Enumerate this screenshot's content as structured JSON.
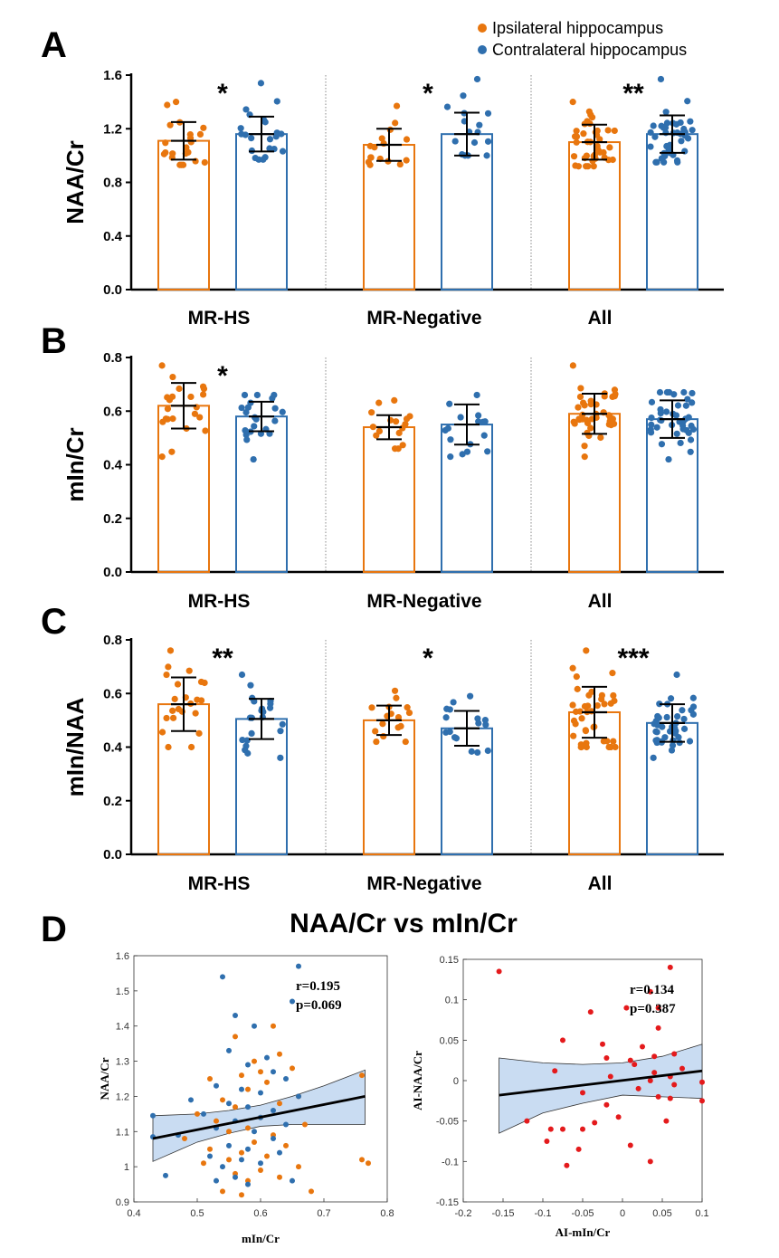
{
  "colors": {
    "ipsi": "#E8760E",
    "contra": "#2F6FAE",
    "scatter_red": "#E41A1C",
    "band": "#C9DCF2",
    "axis": "#000000"
  },
  "legend": {
    "items": [
      "Ipsilateral hippocampus",
      "Contralateral hippocampus"
    ]
  },
  "chart_data": [
    {
      "panel": "A",
      "type": "bar",
      "ylabel": "NAA/Cr",
      "ylim": [
        0,
        1.6
      ],
      "yticks": [
        "0.0",
        "0.4",
        "0.8",
        "1.2",
        "1.6"
      ],
      "tickvals": [
        0,
        0.4,
        0.8,
        1.2,
        1.6
      ],
      "groups": [
        "MR-HS",
        "MR-Negative",
        "All"
      ],
      "significance": [
        "*",
        "*",
        "**"
      ],
      "series": [
        {
          "name": "Ipsilateral hippocampus",
          "means": [
            1.11,
            1.08,
            1.1
          ],
          "sd": [
            0.14,
            0.12,
            0.13
          ],
          "n": [
            22,
            16,
            40
          ],
          "ranges": [
            [
              0.93,
              1.4
            ],
            [
              0.93,
              1.37
            ],
            [
              0.92,
              1.4
            ]
          ]
        },
        {
          "name": "Contralateral hippocampus",
          "means": [
            1.16,
            1.16,
            1.16
          ],
          "sd": [
            0.13,
            0.16,
            0.14
          ],
          "n": [
            22,
            16,
            40
          ],
          "ranges": [
            [
              0.97,
              1.54
            ],
            [
              1.0,
              1.57
            ],
            [
              0.95,
              1.57
            ]
          ]
        }
      ]
    },
    {
      "panel": "B",
      "type": "bar",
      "ylabel": "mIn/Cr",
      "ylim": [
        0,
        0.8
      ],
      "yticks": [
        "0.0",
        "0.2",
        "0.4",
        "0.6",
        "0.8"
      ],
      "tickvals": [
        0,
        0.2,
        0.4,
        0.6,
        0.8
      ],
      "groups": [
        "MR-HS",
        "MR-Negative",
        "All"
      ],
      "significance": [
        "*",
        "",
        ""
      ],
      "series": [
        {
          "name": "Ipsilateral hippocampus",
          "means": [
            0.62,
            0.54,
            0.59
          ],
          "sd": [
            0.085,
            0.045,
            0.075
          ],
          "n": [
            22,
            16,
            40
          ],
          "ranges": [
            [
              0.43,
              0.77
            ],
            [
              0.46,
              0.64
            ],
            [
              0.43,
              0.77
            ]
          ]
        },
        {
          "name": "Contralateral hippocampus",
          "means": [
            0.58,
            0.55,
            0.57
          ],
          "sd": [
            0.055,
            0.075,
            0.07
          ],
          "n": [
            22,
            16,
            40
          ],
          "ranges": [
            [
              0.42,
              0.66
            ],
            [
              0.43,
              0.66
            ],
            [
              0.42,
              0.67
            ]
          ]
        }
      ]
    },
    {
      "panel": "C",
      "type": "bar",
      "ylabel": "mIn/NAA",
      "ylim": [
        0,
        0.8
      ],
      "yticks": [
        "0.0",
        "0.2",
        "0.4",
        "0.6",
        "0.8"
      ],
      "tickvals": [
        0,
        0.2,
        0.4,
        0.6,
        0.8
      ],
      "groups": [
        "MR-HS",
        "MR-Negative",
        "All"
      ],
      "significance": [
        "**",
        "*",
        "***"
      ],
      "series": [
        {
          "name": "Ipsilateral hippocampus",
          "means": [
            0.56,
            0.5,
            0.53
          ],
          "sd": [
            0.1,
            0.055,
            0.095
          ],
          "n": [
            22,
            16,
            40
          ],
          "ranges": [
            [
              0.4,
              0.76
            ],
            [
              0.42,
              0.61
            ],
            [
              0.4,
              0.76
            ]
          ]
        },
        {
          "name": "Contralateral hippocampus",
          "means": [
            0.505,
            0.47,
            0.49
          ],
          "sd": [
            0.075,
            0.065,
            0.07
          ],
          "n": [
            22,
            16,
            40
          ],
          "ranges": [
            [
              0.36,
              0.67
            ],
            [
              0.38,
              0.59
            ],
            [
              0.36,
              0.67
            ]
          ]
        }
      ]
    },
    {
      "panel": "D-left",
      "type": "scatter",
      "xlabel": "mIn/Cr",
      "ylabel": "NAA/Cr",
      "xlim": [
        0.4,
        0.8
      ],
      "ylim": [
        0.9,
        1.6
      ],
      "xticks": [
        "0.4",
        "0.5",
        "0.6",
        "0.7",
        "0.8"
      ],
      "xtickvals": [
        0.4,
        0.5,
        0.6,
        0.7,
        0.8
      ],
      "yticks": [
        "0.9",
        "1",
        "1.1",
        "1.2",
        "1.3",
        "1.4",
        "1.5",
        "1.6"
      ],
      "ytickvals": [
        0.9,
        1.0,
        1.1,
        1.2,
        1.3,
        1.4,
        1.5,
        1.6
      ],
      "annotation": [
        "r=0.195",
        "p=0.069"
      ],
      "fit": {
        "x": [
          0.43,
          0.765
        ],
        "y": [
          1.08,
          1.2
        ]
      },
      "band_upper": [
        [
          0.43,
          1.145
        ],
        [
          0.5,
          1.15
        ],
        [
          0.55,
          1.16
        ],
        [
          0.6,
          1.175
        ],
        [
          0.65,
          1.2
        ],
        [
          0.7,
          1.23
        ],
        [
          0.765,
          1.275
        ]
      ],
      "band_lower": [
        [
          0.43,
          1.015
        ],
        [
          0.5,
          1.07
        ],
        [
          0.55,
          1.095
        ],
        [
          0.6,
          1.115
        ],
        [
          0.65,
          1.12
        ],
        [
          0.7,
          1.12
        ],
        [
          0.765,
          1.12
        ]
      ],
      "series": [
        {
          "name": "Ipsilateral hippocampus",
          "color": "#E8760E",
          "points": [
            [
              0.62,
              1.4
            ],
            [
              0.56,
              1.37
            ],
            [
              0.63,
              1.32
            ],
            [
              0.59,
              1.3
            ],
            [
              0.65,
              1.28
            ],
            [
              0.6,
              1.27
            ],
            [
              0.57,
              1.26
            ],
            [
              0.52,
              1.25
            ],
            [
              0.61,
              1.24
            ],
            [
              0.58,
              1.22
            ],
            [
              0.66,
              1.2
            ],
            [
              0.54,
              1.19
            ],
            [
              0.63,
              1.18
            ],
            [
              0.56,
              1.17
            ],
            [
              0.5,
              1.15
            ],
            [
              0.6,
              1.14
            ],
            [
              0.53,
              1.13
            ],
            [
              0.67,
              1.12
            ],
            [
              0.58,
              1.11
            ],
            [
              0.55,
              1.1
            ],
            [
              0.62,
              1.09
            ],
            [
              0.48,
              1.08
            ],
            [
              0.59,
              1.07
            ],
            [
              0.64,
              1.06
            ],
            [
              0.52,
              1.05
            ],
            [
              0.57,
              1.04
            ],
            [
              0.61,
              1.03
            ],
            [
              0.55,
              1.02
            ],
            [
              0.51,
              1.01
            ],
            [
              0.66,
              1.0
            ],
            [
              0.6,
              0.99
            ],
            [
              0.56,
              0.98
            ],
            [
              0.63,
              0.97
            ],
            [
              0.58,
              0.96
            ],
            [
              0.68,
              0.93
            ],
            [
              0.54,
              0.93
            ],
            [
              0.57,
              0.92
            ],
            [
              0.76,
              1.26
            ],
            [
              0.76,
              1.02
            ],
            [
              0.77,
              1.01
            ]
          ]
        },
        {
          "name": "Contralateral hippocampus",
          "color": "#2F6FAE",
          "points": [
            [
              0.66,
              1.57
            ],
            [
              0.54,
              1.54
            ],
            [
              0.65,
              1.47
            ],
            [
              0.56,
              1.43
            ],
            [
              0.59,
              1.4
            ],
            [
              0.55,
              1.33
            ],
            [
              0.61,
              1.31
            ],
            [
              0.58,
              1.29
            ],
            [
              0.62,
              1.27
            ],
            [
              0.64,
              1.25
            ],
            [
              0.53,
              1.23
            ],
            [
              0.57,
              1.22
            ],
            [
              0.6,
              1.21
            ],
            [
              0.66,
              1.2
            ],
            [
              0.49,
              1.19
            ],
            [
              0.55,
              1.18
            ],
            [
              0.58,
              1.17
            ],
            [
              0.62,
              1.16
            ],
            [
              0.51,
              1.15
            ],
            [
              0.43,
              1.145
            ],
            [
              0.6,
              1.14
            ],
            [
              0.56,
              1.13
            ],
            [
              0.64,
              1.12
            ],
            [
              0.53,
              1.11
            ],
            [
              0.59,
              1.1
            ],
            [
              0.47,
              1.09
            ],
            [
              0.43,
              1.085
            ],
            [
              0.62,
              1.08
            ],
            [
              0.55,
              1.06
            ],
            [
              0.58,
              1.05
            ],
            [
              0.63,
              1.04
            ],
            [
              0.52,
              1.03
            ],
            [
              0.57,
              1.02
            ],
            [
              0.6,
              1.01
            ],
            [
              0.54,
              1.0
            ],
            [
              0.45,
              0.975
            ],
            [
              0.56,
              0.97
            ],
            [
              0.53,
              0.96
            ],
            [
              0.65,
              0.96
            ],
            [
              0.58,
              0.95
            ]
          ]
        }
      ]
    },
    {
      "panel": "D-right",
      "type": "scatter",
      "xlabel": "AI-mIn/Cr",
      "ylabel": "AI-NAA/Cr",
      "xlim": [
        -0.2,
        0.1
      ],
      "ylim": [
        -0.15,
        0.15
      ],
      "xticks": [
        "-0.2",
        "-0.15",
        "-0.1",
        "-0.05",
        "0",
        "0.05",
        "0.1"
      ],
      "xtickvals": [
        -0.2,
        -0.15,
        -0.1,
        -0.05,
        0,
        0.05,
        0.1
      ],
      "yticks": [
        "-0.15",
        "-0.1",
        "-0.05",
        "0",
        "0.05",
        "0.1",
        "0.15"
      ],
      "ytickvals": [
        -0.15,
        -0.1,
        -0.05,
        0,
        0.05,
        0.1,
        0.15
      ],
      "annotation": [
        "r=0.134",
        "p=0.387"
      ],
      "fit": {
        "x": [
          -0.155,
          0.1
        ],
        "y": [
          -0.018,
          0.012
        ]
      },
      "band_upper": [
        [
          -0.155,
          0.028
        ],
        [
          -0.1,
          0.022
        ],
        [
          -0.05,
          0.02
        ],
        [
          0,
          0.022
        ],
        [
          0.05,
          0.03
        ],
        [
          0.1,
          0.045
        ]
      ],
      "band_lower": [
        [
          -0.155,
          -0.065
        ],
        [
          -0.1,
          -0.04
        ],
        [
          -0.05,
          -0.028
        ],
        [
          0,
          -0.018
        ],
        [
          0.05,
          -0.02
        ],
        [
          0.1,
          -0.022
        ]
      ],
      "series": [
        {
          "name": "AI",
          "color": "#E41A1C",
          "points": [
            [
              -0.155,
              0.135
            ],
            [
              0.06,
              0.14
            ],
            [
              0.035,
              0.11
            ],
            [
              0.045,
              0.09
            ],
            [
              0.005,
              0.09
            ],
            [
              -0.04,
              0.085
            ],
            [
              0.045,
              0.065
            ],
            [
              -0.025,
              0.045
            ],
            [
              -0.075,
              0.05
            ],
            [
              0.025,
              0.042
            ],
            [
              0.065,
              0.033
            ],
            [
              0.04,
              0.03
            ],
            [
              0.075,
              0.015
            ],
            [
              -0.02,
              0.028
            ],
            [
              0.01,
              0.025
            ],
            [
              0.015,
              0.02
            ],
            [
              -0.085,
              0.012
            ],
            [
              0.04,
              0.01
            ],
            [
              0.06,
              0.005
            ],
            [
              0.1,
              -0.002
            ],
            [
              -0.015,
              0.005
            ],
            [
              0.035,
              0.0
            ],
            [
              0.065,
              -0.005
            ],
            [
              0.02,
              -0.01
            ],
            [
              -0.05,
              -0.015
            ],
            [
              0.045,
              -0.02
            ],
            [
              -0.02,
              -0.03
            ],
            [
              0.06,
              -0.022
            ],
            [
              0.1,
              -0.025
            ],
            [
              -0.035,
              -0.052
            ],
            [
              -0.005,
              -0.045
            ],
            [
              -0.12,
              -0.05
            ],
            [
              -0.09,
              -0.06
            ],
            [
              0.055,
              -0.05
            ],
            [
              -0.05,
              -0.06
            ],
            [
              -0.075,
              -0.06
            ],
            [
              -0.095,
              -0.075
            ],
            [
              0.01,
              -0.08
            ],
            [
              -0.055,
              -0.085
            ],
            [
              -0.07,
              -0.105
            ],
            [
              0.035,
              -0.1
            ]
          ]
        }
      ]
    }
  ],
  "panel_labels": {
    "a": "A",
    "b": "B",
    "c": "C",
    "d": "D"
  },
  "d_title": "NAA/Cr vs mIn/Cr"
}
